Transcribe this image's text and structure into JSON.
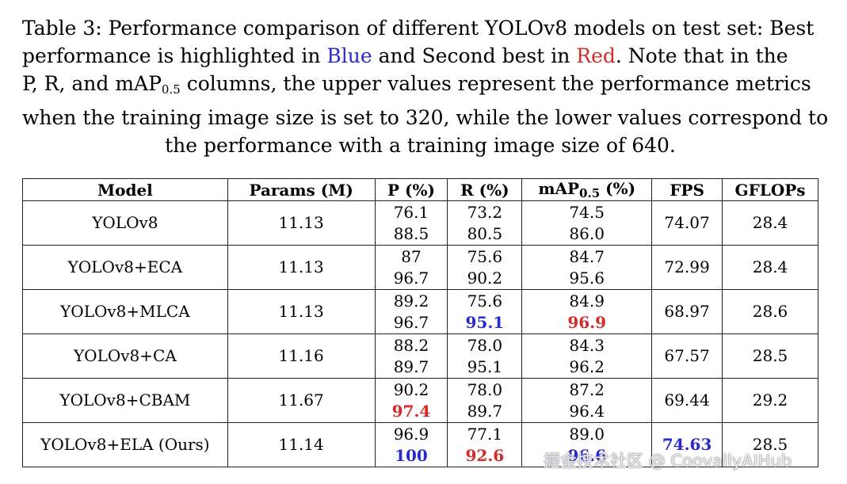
{
  "caption": {
    "line1": {
      "a": "Table 3: Performance comparison of different YOLOv8 models on test set: Best"
    },
    "line2": {
      "a": "performance is highlighted in",
      "blue": "Blue",
      "b": "and Second best in",
      "red": "Red",
      "c": ". Note that in the"
    },
    "line3": {
      "a": "P, R, and mAP",
      "sub": "0.5",
      "b": " columns, the upper values represent the performance metrics"
    },
    "line4": "when the training image size is set to 320, while the lower values correspond to",
    "line5": "the performance with a training image size of 640."
  },
  "table": {
    "headers": {
      "model": "Model",
      "params": "Params (M)",
      "p": "P (%)",
      "r": "R (%)",
      "map_a": "mAP",
      "map_sub": "0.5",
      "map_b": " (%)",
      "fps": "FPS",
      "gflops": "GFLOPs"
    },
    "rows": [
      {
        "model": "YOLOv8",
        "params": "11.13",
        "p": [
          "76.1",
          "88.5"
        ],
        "r": [
          "73.2",
          "80.5"
        ],
        "map": [
          "74.5",
          "86.0"
        ],
        "fps": "74.07",
        "gflops": "28.4"
      },
      {
        "model": "YOLOv8+ECA",
        "params": "11.13",
        "p": [
          "87",
          "96.7"
        ],
        "r": [
          "75.6",
          "90.2"
        ],
        "map": [
          "84.7",
          "95.6"
        ],
        "fps": "72.99",
        "gflops": "28.4"
      },
      {
        "model": "YOLOv8+MLCA",
        "params": "11.13",
        "p": [
          "89.2",
          "96.7"
        ],
        "r": [
          "75.6",
          "95.1"
        ],
        "map": [
          "84.9",
          "96.9"
        ],
        "fps": "68.97",
        "gflops": "28.6"
      },
      {
        "model": "YOLOv8+CA",
        "params": "11.16",
        "p": [
          "88.2",
          "89.7"
        ],
        "r": [
          "78.0",
          "95.1"
        ],
        "map": [
          "84.3",
          "96.2"
        ],
        "fps": "67.57",
        "gflops": "28.5"
      },
      {
        "model": "YOLOv8+CBAM",
        "params": "11.67",
        "p": [
          "90.2",
          "97.4"
        ],
        "r": [
          "78.0",
          "89.7"
        ],
        "map": [
          "87.2",
          "96.4"
        ],
        "fps": "69.44",
        "gflops": "29.2"
      },
      {
        "model": "YOLOv8+ELA (Ours)",
        "params": "11.14",
        "p": [
          "96.9",
          "100"
        ],
        "r": [
          "77.1",
          "92.6"
        ],
        "map": [
          "89.0",
          "96.6"
        ],
        "fps": "74.63",
        "gflops": "28.5"
      }
    ]
  },
  "highlight_colors": {
    "best": "#2a2ad0",
    "second": "#d42a2a"
  },
  "watermark": "掘金技术社区 @ CoovallyAIHub"
}
